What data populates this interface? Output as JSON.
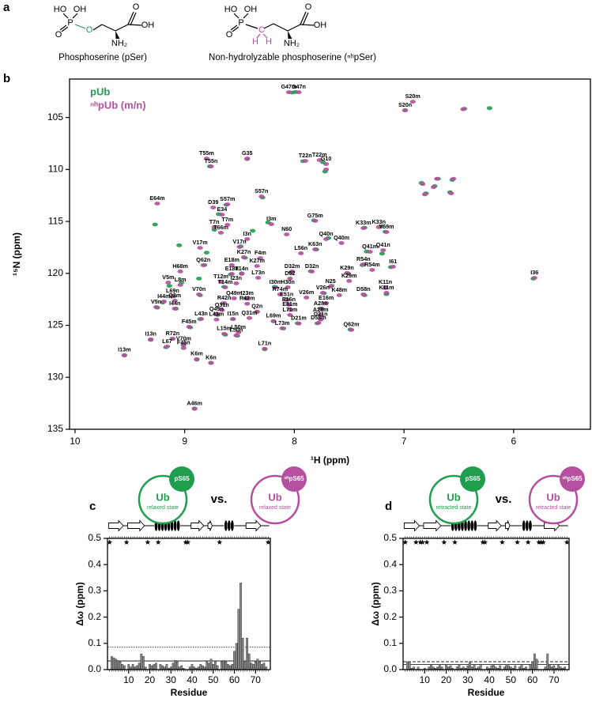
{
  "panel_a": {
    "label": "a",
    "molecules": [
      {
        "atoms": [
          "HO",
          "OH",
          "P",
          "O",
          "O",
          "NH₂",
          "O",
          "OH"
        ],
        "caption": "Phosphoserine (pSer)"
      },
      {
        "atoms": [
          "HO",
          "OH",
          "P",
          "O",
          "C",
          "H",
          "H",
          "NH₂",
          "O",
          "OH"
        ],
        "caption": "Non-hydrolyzable phosphoserine (ⁿʰpSer)"
      }
    ]
  },
  "chart_data": [
    {
      "type": "scatter",
      "panel_label": "b",
      "xlabel": "¹H (ppm)",
      "ylabel": "¹⁵N (ppm)",
      "xlim": [
        10.05,
        5.3
      ],
      "ylim": [
        135,
        101.3
      ],
      "xticks": [
        10,
        9,
        8,
        7,
        6
      ],
      "yticks": [
        105,
        110,
        115,
        120,
        125,
        130,
        135
      ],
      "series": [
        {
          "name": "pUb",
          "color": "#1f9e4f",
          "x": [
            8.02,
            7.99,
            6.45,
            6.22,
            6.99,
            8.77,
            8.43,
            7.92,
            7.74,
            9.27,
            8.24,
            8.38,
            8.29,
            8.69,
            8.73,
            8.62,
            7.82,
            7.69,
            7.8,
            7.36,
            7.21,
            7.17,
            8.49,
            8.8,
            8.82,
            8.45,
            7.34,
            7.2,
            9.03,
            8.58,
            8.48,
            8.03,
            7.85,
            7.51,
            7.38,
            7.12,
            5.82,
            9.14,
            8.64,
            8.18,
            7.66,
            7.73,
            7.17,
            7.16,
            9.1,
            8.86,
            8.44,
            8.07,
            7.36,
            9.2,
            8.65,
            8.05,
            7.75,
            9.25,
            9.08,
            8.7,
            8.34,
            8.86,
            8.56,
            8.19,
            7.97,
            8.95,
            8.1,
            7.79,
            7.49,
            8.63,
            8.52,
            9.31,
            9.11,
            9.01,
            9.17,
            8.27,
            9.55,
            8.89,
            8.76,
            8.91,
            9.05,
            8.87,
            6.69,
            6.84,
            6.56,
            6.8,
            6.58,
            7.72,
            6.72
          ],
          "values": [
            102.6,
            102.55,
            104.16,
            104.1,
            104.3,
            109.7,
            109.0,
            109.2,
            109.3,
            115.3,
            115.1,
            115.9,
            112.7,
            114.3,
            115.8,
            113.4,
            114.9,
            116.6,
            117.7,
            115.6,
            115.5,
            116.0,
            117.4,
            118.0,
            119.2,
            118.5,
            117.9,
            118.1,
            120.9,
            120.1,
            120.0,
            119.9,
            119.8,
            120.0,
            119.2,
            119.4,
            120.5,
            121.2,
            121.3,
            121.3,
            121.2,
            121.9,
            121.4,
            122.0,
            122.2,
            122.1,
            122.4,
            122.5,
            122.1,
            122.8,
            122.9,
            123.0,
            123.4,
            123.3,
            123.4,
            124.0,
            123.7,
            124.4,
            124.4,
            124.6,
            124.8,
            125.2,
            125.3,
            124.8,
            125.4,
            125.9,
            126.0,
            126.4,
            126.3,
            126.9,
            127.1,
            127.3,
            127.9,
            128.3,
            128.6,
            133.0,
            117.3,
            120.5,
            110.9,
            111.3,
            111.0,
            112.3,
            112.2,
            110.2,
            111.6
          ]
        },
        {
          "name": "ⁿʰpUb (m/n)",
          "color": "#b4509f",
          "x": [
            8.05,
            7.96,
            6.92,
            6.99,
            8.8,
            8.76,
            8.43,
            7.9,
            7.77,
            7.71,
            9.25,
            8.66,
            8.74,
            8.61,
            8.3,
            8.73,
            8.61,
            8.67,
            8.21,
            8.07,
            7.81,
            8.43,
            7.71,
            7.57,
            7.81,
            7.94,
            7.37,
            7.23,
            7.16,
            8.86,
            8.5,
            8.46,
            8.31,
            8.34,
            8.83,
            8.57,
            7.31,
            7.19,
            9.04,
            8.57,
            8.48,
            8.33,
            8.02,
            7.84,
            7.52,
            7.5,
            7.37,
            7.1,
            7.29,
            8.04,
            5.81,
            9.15,
            9.04,
            8.67,
            8.63,
            8.53,
            8.17,
            8.06,
            7.67,
            7.74,
            7.59,
            7.17,
            7.16,
            9.11,
            8.87,
            8.55,
            8.43,
            8.13,
            8.07,
            7.89,
            7.71,
            7.37,
            9.09,
            9.19,
            8.64,
            8.43,
            8.05,
            7.76,
            8.66,
            8.04,
            7.76,
            9.26,
            9.09,
            8.71,
            8.34,
            8.04,
            7.76,
            8.85,
            8.71,
            8.56,
            8.41,
            8.19,
            7.96,
            8.96,
            8.11,
            7.78,
            7.48,
            8.64,
            8.51,
            8.53,
            9.31,
            9.11,
            9.01,
            9.16,
            9.01,
            8.27,
            9.55,
            8.89,
            8.76,
            8.91,
            6.7,
            6.83,
            6.55,
            6.81,
            6.57,
            6.46,
            7.71,
            6.73
          ],
          "values": [
            102.57,
            102.57,
            103.48,
            104.32,
            108.95,
            109.71,
            108.95,
            109.18,
            109.1,
            109.48,
            113.28,
            114.35,
            113.66,
            113.36,
            112.6,
            115.56,
            115.33,
            116.09,
            115.26,
            116.25,
            114.95,
            116.7,
            116.7,
            117.08,
            117.69,
            118.07,
            115.64,
            115.56,
            116.02,
            117.54,
            117.46,
            118.45,
            118.53,
            119.29,
            119.21,
            119.21,
            117.92,
            117.77,
            119.82,
            120.05,
            120.05,
            120.43,
            119.82,
            119.82,
            119.97,
            120.73,
            119.13,
            119.36,
            119.67,
            120.5,
            120.43,
            120.88,
            121.11,
            120.81,
            121.34,
            120.96,
            121.34,
            121.34,
            121.26,
            121.87,
            122.1,
            121.34,
            121.87,
            122.17,
            122.02,
            122.4,
            122.4,
            122.02,
            122.55,
            122.33,
            122.86,
            122.02,
            122.63,
            122.71,
            122.86,
            122.93,
            123.01,
            123.39,
            123.54,
            123.47,
            124.0,
            123.24,
            123.39,
            123.92,
            123.69,
            124.0,
            124.45,
            124.38,
            124.45,
            124.38,
            124.3,
            124.6,
            124.83,
            125.14,
            125.29,
            124.76,
            125.44,
            125.82,
            125.67,
            125.97,
            126.35,
            126.28,
            126.81,
            127.04,
            127.19,
            127.26,
            127.87,
            128.25,
            128.63,
            133.04,
            110.9,
            111.4,
            110.9,
            112.4,
            112.3,
            104.2,
            110.0,
            111.7
          ],
          "labels": [
            "G47m",
            "G47n",
            "S20m",
            "S20n",
            "T55m",
            "T55n",
            "G35",
            "T22n",
            "T22m",
            "G10",
            "E64m",
            "E34",
            "D39",
            "S57m",
            "S57n",
            "T7n",
            "T7m",
            "T66m",
            "I3m",
            "N60",
            "G75m",
            "I3n",
            "Q40n",
            "Q40m",
            "K63n",
            "L56n",
            "K33m",
            "K33n",
            "Y59m",
            "V17m",
            "V17n",
            "K27n",
            "F4m",
            "K27m",
            "Q62n",
            "E18m",
            "Q41m",
            "Q41n",
            "H68m",
            "E18n",
            "T14n",
            "L73n",
            "D32m",
            "D32n",
            "K29n",
            "K29m",
            "R54n",
            "I61",
            "R54m",
            "D52",
            "I36",
            "V5m",
            "L8m",
            "T12m",
            "T14m",
            "I23n",
            "I30m",
            "H30n",
            "N25",
            "V26n",
            "K48m",
            "K11n",
            "K11m",
            "L69n",
            "V70n",
            "Q49m",
            "I23m",
            "R74m",
            "E51n",
            "V26m",
            "E16m",
            "D58n",
            "Q2m",
            "I44m",
            "R42n",
            "R42m",
            "E16n",
            "A28n",
            "Q31n",
            "E51m",
            "A28m",
            "V5n",
            "I44n",
            "Q49n",
            "Q2n",
            "L71m",
            "D21n",
            "L43n",
            "L43m",
            "I15n",
            "Q31m",
            "L69m",
            "D21m",
            "F45m",
            "L73m",
            "D58m",
            "Q62m",
            "L15m",
            "L50m",
            "L50n",
            "I13n",
            "R72n",
            "V70m",
            "L67",
            "F45n",
            "L71n",
            "I13m",
            "K6m",
            "K6n",
            "A46m",
            null,
            null,
            null,
            null,
            null,
            null,
            null,
            null
          ]
        }
      ]
    },
    {
      "type": "bar",
      "panel_label": "c",
      "xlabel": "Residue",
      "ylabel": "Δω (ppm)",
      "color": "#8c8c8c",
      "schematic": {
        "left": {
          "ub": "Ub",
          "site": "pS65",
          "state": "relaxed state",
          "color": "#1f9e4f"
        },
        "vs": "vs.",
        "right": {
          "ub": "Ub",
          "site": "ⁿʰpS65",
          "state": "relaxed state",
          "color": "#b4509f"
        }
      },
      "thresholds": [
        {
          "value": 0.033,
          "style": "solid"
        },
        {
          "value": 0.085,
          "style": "dotted"
        }
      ],
      "xlim": [
        0,
        77
      ],
      "ylim": [
        0,
        0.5
      ],
      "xticks": [
        10,
        20,
        30,
        40,
        50,
        60,
        70
      ],
      "yticks": [
        {
          "value": 0,
          "label": "0.0"
        },
        0.1,
        0.2,
        0.3,
        0.4,
        0.5
      ],
      "x": [
        1,
        2,
        3,
        4,
        5,
        6,
        7,
        8,
        9,
        10,
        11,
        12,
        13,
        14,
        15,
        16,
        17,
        18,
        19,
        20,
        21,
        22,
        23,
        24,
        25,
        26,
        27,
        28,
        29,
        30,
        31,
        32,
        33,
        34,
        35,
        36,
        37,
        38,
        39,
        40,
        41,
        42,
        43,
        44,
        45,
        46,
        47,
        48,
        49,
        50,
        51,
        52,
        53,
        54,
        55,
        56,
        57,
        58,
        59,
        60,
        61,
        62,
        63,
        64,
        65,
        66,
        67,
        68,
        69,
        70,
        71,
        72,
        73,
        74,
        75,
        76
      ],
      "values": [
        null,
        0.05,
        0.045,
        0.04,
        0.035,
        0.03,
        0.02,
        0.015,
        null,
        0.02,
        0.01,
        0.02,
        0.01,
        0.015,
        0.025,
        0.06,
        0.05,
        0.01,
        null,
        0.02,
        0.015,
        0.02,
        0.025,
        null,
        0.02,
        0.015,
        0.01,
        0.02,
        0.005,
        0.01,
        0.025,
        0.035,
        0.03,
        0.01,
        0.015,
        0.005,
        null,
        null,
        0.01,
        0.02,
        0.01,
        0.005,
        0.01,
        0.02,
        0.015,
        0.01,
        0.03,
        0.025,
        0.04,
        0.02,
        0.03,
        0.015,
        null,
        0.03,
        0.035,
        0.03,
        0.02,
        0.015,
        0.02,
        0.07,
        0.1,
        0.23,
        0.33,
        0.12,
        0.03,
        0.12,
        0.06,
        0.025,
        0.02,
        0.03,
        0.04,
        0.03,
        0.02,
        0.025,
        0.01,
        null
      ]
    },
    {
      "type": "bar",
      "panel_label": "d",
      "xlabel": "Residue",
      "ylabel": "Δω (ppm)",
      "color": "#8c8c8c",
      "schematic": {
        "left": {
          "ub": "Ub",
          "site": "pS65",
          "state": "retracted state",
          "color": "#1f9e4f"
        },
        "vs": "vs.",
        "right": {
          "ub": "Ub",
          "site": "ⁿʰpS65",
          "state": "retracted state",
          "color": "#b4509f"
        }
      },
      "thresholds": [
        {
          "value": 0.02,
          "style": "solid"
        },
        {
          "value": 0.03,
          "style": "dashed"
        }
      ],
      "xlim": [
        0,
        77
      ],
      "ylim": [
        0,
        0.5
      ],
      "xticks": [
        10,
        20,
        30,
        40,
        50,
        60,
        70
      ],
      "yticks": [
        {
          "value": 0,
          "label": "0.0"
        },
        0.1,
        0.2,
        0.3,
        0.4,
        0.5
      ],
      "x": [
        1,
        2,
        3,
        4,
        5,
        6,
        7,
        8,
        9,
        10,
        11,
        12,
        13,
        14,
        15,
        16,
        17,
        18,
        19,
        20,
        21,
        22,
        23,
        24,
        25,
        26,
        27,
        28,
        29,
        30,
        31,
        32,
        33,
        34,
        35,
        36,
        37,
        38,
        39,
        40,
        41,
        42,
        43,
        44,
        45,
        46,
        47,
        48,
        49,
        50,
        51,
        52,
        53,
        54,
        55,
        56,
        57,
        58,
        59,
        60,
        61,
        62,
        63,
        64,
        65,
        66,
        67,
        68,
        69,
        70,
        71,
        72,
        73,
        74,
        75,
        76
      ],
      "values": [
        null,
        0.03,
        0.03,
        0.005,
        0.01,
        null,
        0.01,
        null,
        null,
        0.005,
        null,
        0.01,
        0.02,
        0.01,
        0.005,
        0.01,
        0.02,
        0.01,
        null,
        0.02,
        0.01,
        0.015,
        0.005,
        null,
        0.01,
        0.02,
        0.005,
        0.01,
        0.005,
        0.015,
        0.03,
        0.01,
        0.02,
        0.005,
        0.01,
        0.02,
        null,
        null,
        0.01,
        0.005,
        0.015,
        0.02,
        0.01,
        0.005,
        0.015,
        null,
        0.01,
        0.02,
        0.015,
        0.01,
        0.005,
        0.015,
        null,
        0.01,
        0.02,
        0.005,
        0.01,
        null,
        0.02,
        0.03,
        0.06,
        0.04,
        null,
        null,
        null,
        0.01,
        0.06,
        0.02,
        0.01,
        0.015,
        0.005,
        0.02,
        0.01,
        0.005,
        0.01,
        null
      ]
    }
  ]
}
